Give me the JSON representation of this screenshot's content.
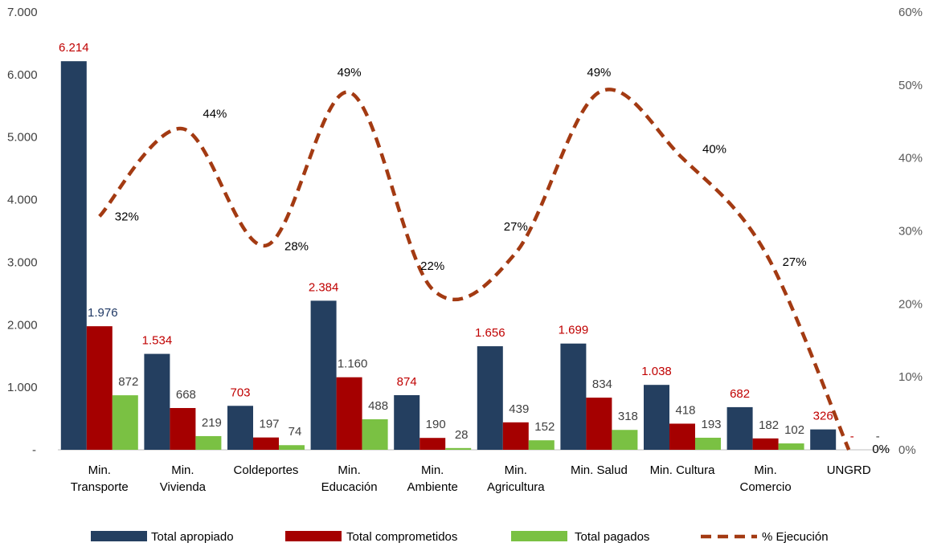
{
  "chart_data": {
    "type": "bar",
    "categories": [
      [
        "Min.",
        "Transporte"
      ],
      [
        "Min.",
        "Vivienda"
      ],
      [
        "Coldeportes"
      ],
      [
        "Min.",
        "Educación"
      ],
      [
        "Min.",
        "Ambiente"
      ],
      [
        "Min.",
        "Agricultura"
      ],
      [
        "Min. Salud"
      ],
      [
        "Min. Cultura"
      ],
      [
        "Min.",
        "Comercio"
      ],
      [
        "UNGRD"
      ]
    ],
    "series": [
      {
        "name": "Total apropiado",
        "color": "#243F60",
        "values": [
          6214,
          1534,
          703,
          2384,
          874,
          1656,
          1699,
          1038,
          682,
          326
        ],
        "labels": [
          "6.214",
          "1.534",
          "703",
          "2.384",
          "874",
          "1.656",
          "1.699",
          "1.038",
          "682",
          "326"
        ],
        "label_color": "#C00000"
      },
      {
        "name": "Total comprometidos",
        "color": "#A50000",
        "values": [
          1976,
          668,
          197,
          1160,
          190,
          439,
          834,
          418,
          182,
          0
        ],
        "labels": [
          "1.976",
          "668",
          "197",
          "1.160",
          "190",
          "439",
          "834",
          "418",
          "182",
          "-"
        ],
        "label_color": "#404040",
        "label_colors": [
          "#1F3864",
          "#404040",
          "#404040",
          "#404040",
          "#404040",
          "#404040",
          "#404040",
          "#404040",
          "#404040",
          "#C00000"
        ]
      },
      {
        "name": "Total  pagados",
        "color": "#7AC143",
        "values": [
          872,
          219,
          74,
          488,
          28,
          152,
          318,
          193,
          102,
          0
        ],
        "labels": [
          "872",
          "219",
          "74",
          "488",
          "28",
          "152",
          "318",
          "193",
          "102",
          "-"
        ],
        "label_color": "#404040"
      }
    ],
    "line_series": {
      "name": "% Ejecución",
      "color": "#A33A12",
      "values": [
        32,
        44,
        28,
        49,
        22,
        27,
        49,
        40,
        27,
        0
      ],
      "labels": [
        "32%",
        "44%",
        "28%",
        "49%",
        "22%",
        "27%",
        "49%",
        "40%",
        "27%",
        "0%"
      ],
      "axis": "right"
    },
    "y_left": {
      "ylim": [
        0,
        7000
      ],
      "ticks": [
        0,
        1000,
        2000,
        3000,
        4000,
        5000,
        6000,
        7000
      ],
      "tick_labels": [
        "-",
        "1.000",
        "2.000",
        "3.000",
        "4.000",
        "5.000",
        "6.000",
        "7.000"
      ]
    },
    "y_right": {
      "ylim": [
        0,
        60
      ],
      "ticks": [
        0,
        10,
        20,
        30,
        40,
        50,
        60
      ],
      "tick_labels": [
        "0%",
        "10%",
        "20%",
        "30%",
        "40%",
        "50%",
        "60%"
      ]
    },
    "grid": false,
    "legend_position": "bottom"
  }
}
